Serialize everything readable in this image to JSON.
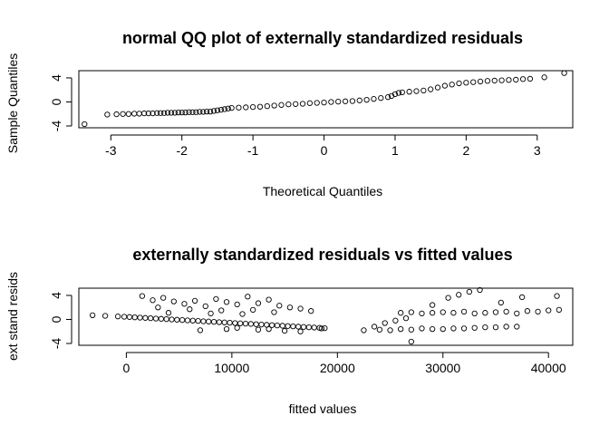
{
  "chart_data": [
    {
      "type": "scatter",
      "title": "normal QQ plot of externally standardized residuals",
      "xlabel": "Theoretical Quantiles",
      "ylabel": "Sample Quantiles",
      "xlim": [
        -3.45,
        3.5
      ],
      "ylim": [
        -4.3,
        5.2
      ],
      "xticks": [
        "-3",
        "-2",
        "-1",
        "0",
        "1",
        "2",
        "3"
      ],
      "yticks": [
        "-4",
        "0",
        "4"
      ],
      "grid": false,
      "points": [
        [
          -3.37,
          -3.7
        ],
        [
          -3.05,
          -2.1
        ],
        [
          -2.92,
          -2.05
        ],
        [
          -2.83,
          -2.0
        ],
        [
          -2.75,
          -2.0
        ],
        [
          -2.67,
          -1.95
        ],
        [
          -2.6,
          -1.95
        ],
        [
          -2.53,
          -1.9
        ],
        [
          -2.47,
          -1.9
        ],
        [
          -2.41,
          -1.9
        ],
        [
          -2.35,
          -1.85
        ],
        [
          -2.3,
          -1.85
        ],
        [
          -2.25,
          -1.85
        ],
        [
          -2.2,
          -1.8
        ],
        [
          -2.15,
          -1.8
        ],
        [
          -2.1,
          -1.8
        ],
        [
          -2.05,
          -1.75
        ],
        [
          -2.0,
          -1.75
        ],
        [
          -1.95,
          -1.75
        ],
        [
          -1.9,
          -1.7
        ],
        [
          -1.85,
          -1.7
        ],
        [
          -1.8,
          -1.7
        ],
        [
          -1.75,
          -1.65
        ],
        [
          -1.7,
          -1.65
        ],
        [
          -1.65,
          -1.6
        ],
        [
          -1.6,
          -1.6
        ],
        [
          -1.55,
          -1.5
        ],
        [
          -1.5,
          -1.4
        ],
        [
          -1.45,
          -1.3
        ],
        [
          -1.4,
          -1.2
        ],
        [
          -1.35,
          -1.1
        ],
        [
          -1.3,
          -1.0
        ],
        [
          -1.2,
          -0.95
        ],
        [
          -1.1,
          -0.9
        ],
        [
          -1.0,
          -0.85
        ],
        [
          -0.9,
          -0.8
        ],
        [
          -0.8,
          -0.7
        ],
        [
          -0.7,
          -0.6
        ],
        [
          -0.6,
          -0.5
        ],
        [
          -0.5,
          -0.4
        ],
        [
          -0.4,
          -0.35
        ],
        [
          -0.3,
          -0.3
        ],
        [
          -0.2,
          -0.2
        ],
        [
          -0.1,
          -0.15
        ],
        [
          0.0,
          -0.1
        ],
        [
          0.1,
          0.0
        ],
        [
          0.2,
          0.05
        ],
        [
          0.3,
          0.1
        ],
        [
          0.4,
          0.15
        ],
        [
          0.5,
          0.25
        ],
        [
          0.6,
          0.35
        ],
        [
          0.7,
          0.5
        ],
        [
          0.8,
          0.65
        ],
        [
          0.9,
          0.8
        ],
        [
          0.95,
          1.0
        ],
        [
          1.0,
          1.3
        ],
        [
          1.05,
          1.5
        ],
        [
          1.1,
          1.6
        ],
        [
          1.2,
          1.7
        ],
        [
          1.3,
          1.8
        ],
        [
          1.4,
          1.9
        ],
        [
          1.5,
          2.1
        ],
        [
          1.6,
          2.4
        ],
        [
          1.7,
          2.7
        ],
        [
          1.8,
          2.9
        ],
        [
          1.9,
          3.1
        ],
        [
          2.0,
          3.2
        ],
        [
          2.1,
          3.3
        ],
        [
          2.2,
          3.4
        ],
        [
          2.3,
          3.5
        ],
        [
          2.4,
          3.55
        ],
        [
          2.5,
          3.6
        ],
        [
          2.6,
          3.65
        ],
        [
          2.7,
          3.7
        ],
        [
          2.8,
          3.8
        ],
        [
          2.9,
          3.85
        ],
        [
          3.1,
          4.1
        ],
        [
          3.38,
          4.8
        ]
      ]
    },
    {
      "type": "scatter",
      "title": "externally standardized residuals vs fitted values",
      "xlabel": "fitted values",
      "ylabel": "ext stand resids",
      "xlim": [
        -4500,
        42300
      ],
      "ylim": [
        -4.3,
        5.2
      ],
      "xticks": [
        "0",
        "10000",
        "20000",
        "30000",
        "40000"
      ],
      "yticks": [
        "-4",
        "0",
        "4"
      ],
      "grid": false,
      "points": [
        [
          -3200,
          0.7
        ],
        [
          -2000,
          0.6
        ],
        [
          -800,
          0.5
        ],
        [
          -200,
          0.45
        ],
        [
          300,
          0.4
        ],
        [
          800,
          0.35
        ],
        [
          1300,
          0.3
        ],
        [
          1800,
          0.25
        ],
        [
          2300,
          0.2
        ],
        [
          2800,
          0.15
        ],
        [
          3300,
          0.1
        ],
        [
          3800,
          0.05
        ],
        [
          4300,
          0.0
        ],
        [
          4800,
          -0.05
        ],
        [
          5300,
          -0.1
        ],
        [
          5800,
          -0.15
        ],
        [
          6300,
          -0.2
        ],
        [
          6800,
          -0.25
        ],
        [
          7300,
          -0.3
        ],
        [
          7800,
          -0.35
        ],
        [
          8300,
          -0.4
        ],
        [
          8800,
          -0.45
        ],
        [
          9300,
          -0.5
        ],
        [
          9800,
          -0.55
        ],
        [
          10300,
          -0.6
        ],
        [
          10800,
          -0.65
        ],
        [
          11300,
          -0.7
        ],
        [
          11800,
          -0.75
        ],
        [
          12300,
          -0.8
        ],
        [
          12800,
          -0.85
        ],
        [
          13300,
          -0.9
        ],
        [
          13800,
          -0.95
        ],
        [
          14300,
          -1.0
        ],
        [
          14800,
          -1.05
        ],
        [
          15300,
          -1.1
        ],
        [
          15800,
          -1.15
        ],
        [
          16300,
          -1.2
        ],
        [
          16800,
          -1.25
        ],
        [
          17300,
          -1.3
        ],
        [
          17800,
          -1.35
        ],
        [
          18300,
          -1.4
        ],
        [
          18800,
          -1.45
        ],
        [
          1500,
          3.9
        ],
        [
          2500,
          3.2
        ],
        [
          3500,
          3.6
        ],
        [
          4500,
          3.0
        ],
        [
          5500,
          2.6
        ],
        [
          6500,
          3.1
        ],
        [
          7500,
          2.2
        ],
        [
          8500,
          3.4
        ],
        [
          9500,
          2.9
        ],
        [
          10500,
          2.5
        ],
        [
          11500,
          3.8
        ],
        [
          12500,
          2.7
        ],
        [
          13500,
          3.3
        ],
        [
          14500,
          2.3
        ],
        [
          15500,
          2.0
        ],
        [
          16500,
          1.8
        ],
        [
          17500,
          1.4
        ],
        [
          3000,
          2.0
        ],
        [
          6000,
          1.7
        ],
        [
          9000,
          1.5
        ],
        [
          12000,
          1.6
        ],
        [
          14000,
          1.2
        ],
        [
          4000,
          1.1
        ],
        [
          8000,
          1.0
        ],
        [
          11000,
          0.9
        ],
        [
          7000,
          -1.8
        ],
        [
          9500,
          -1.6
        ],
        [
          12500,
          -1.7
        ],
        [
          15000,
          -1.9
        ],
        [
          16500,
          -2.0
        ],
        [
          18500,
          -1.5
        ],
        [
          13500,
          -1.6
        ],
        [
          10500,
          -1.4
        ],
        [
          22500,
          -1.8
        ],
        [
          23500,
          -1.2
        ],
        [
          24500,
          -0.6
        ],
        [
          25500,
          -0.2
        ],
        [
          26500,
          0.2
        ],
        [
          24000,
          -1.7
        ],
        [
          25000,
          -1.8
        ],
        [
          26000,
          -1.6
        ],
        [
          27000,
          -1.7
        ],
        [
          28000,
          -1.5
        ],
        [
          29000,
          -1.6
        ],
        [
          30000,
          -1.6
        ],
        [
          31000,
          -1.5
        ],
        [
          32000,
          -1.5
        ],
        [
          33000,
          -1.4
        ],
        [
          34000,
          -1.3
        ],
        [
          35000,
          -1.3
        ],
        [
          36000,
          -1.2
        ],
        [
          37000,
          -1.2
        ],
        [
          26000,
          1.1
        ],
        [
          27000,
          1.2
        ],
        [
          28000,
          1.0
        ],
        [
          29000,
          1.1
        ],
        [
          30000,
          1.2
        ],
        [
          31000,
          1.1
        ],
        [
          32000,
          1.3
        ],
        [
          33000,
          1.0
        ],
        [
          34000,
          1.1
        ],
        [
          35000,
          1.2
        ],
        [
          36000,
          1.3
        ],
        [
          37000,
          1.0
        ],
        [
          38000,
          1.4
        ],
        [
          39000,
          1.3
        ],
        [
          40000,
          1.5
        ],
        [
          41000,
          1.6
        ],
        [
          27000,
          -3.7
        ],
        [
          30500,
          3.6
        ],
        [
          31500,
          4.1
        ],
        [
          32500,
          4.6
        ],
        [
          33500,
          4.9
        ],
        [
          37500,
          3.7
        ],
        [
          40800,
          3.9
        ],
        [
          29000,
          2.4
        ],
        [
          35500,
          2.8
        ]
      ]
    }
  ]
}
